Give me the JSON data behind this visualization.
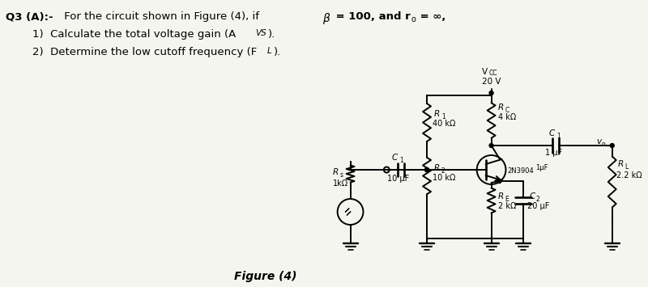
{
  "title_text": "Q3 (A):- For the circuit shown in Figure (4), if",
  "title_bold": " β = 100, and r",
  "title_sub": "o",
  "title_end": " = ∞,",
  "q1": "1)  Calculate the total voltage gain (A",
  "q1b": "VS",
  "q1c": ").",
  "q2": "2)  Determine the low cutoff frequency (F",
  "q2b": "L",
  "q2c": ").",
  "vcc_label": "V",
  "vcc_sub": "CC",
  "vcc_value": "20 V",
  "r1_label": "R",
  "r1_sub": "1",
  "r1_value": "40 kΩ",
  "r2_label": "R",
  "r2_sub": "2",
  "r2_value": "10 kΩ",
  "rc_label": "R",
  "rc_sub": "C",
  "rc_value": "4 kΩ",
  "re_label": "R",
  "re_sub": "E",
  "re_value": "2 kΩ",
  "rs_label": "R",
  "rs_sub": "s",
  "rs_value": "1kΩ",
  "rl_label": "R",
  "rl_sub": "L",
  "rl_value": "2.2 kΩ",
  "c1_label": "C",
  "c1_sub": "1",
  "c1_value": "10 μF",
  "c2_label": "C",
  "c2_sub": "2",
  "c2_value": "20 μF",
  "co_label": "C",
  "co_sub": "1",
  "co_value": "1 μF",
  "transistor_label": "2N3904",
  "fig_label": "Figure (4)",
  "vout_label": "v",
  "vout_sub": "o",
  "bg_color": "#f5f5f0"
}
